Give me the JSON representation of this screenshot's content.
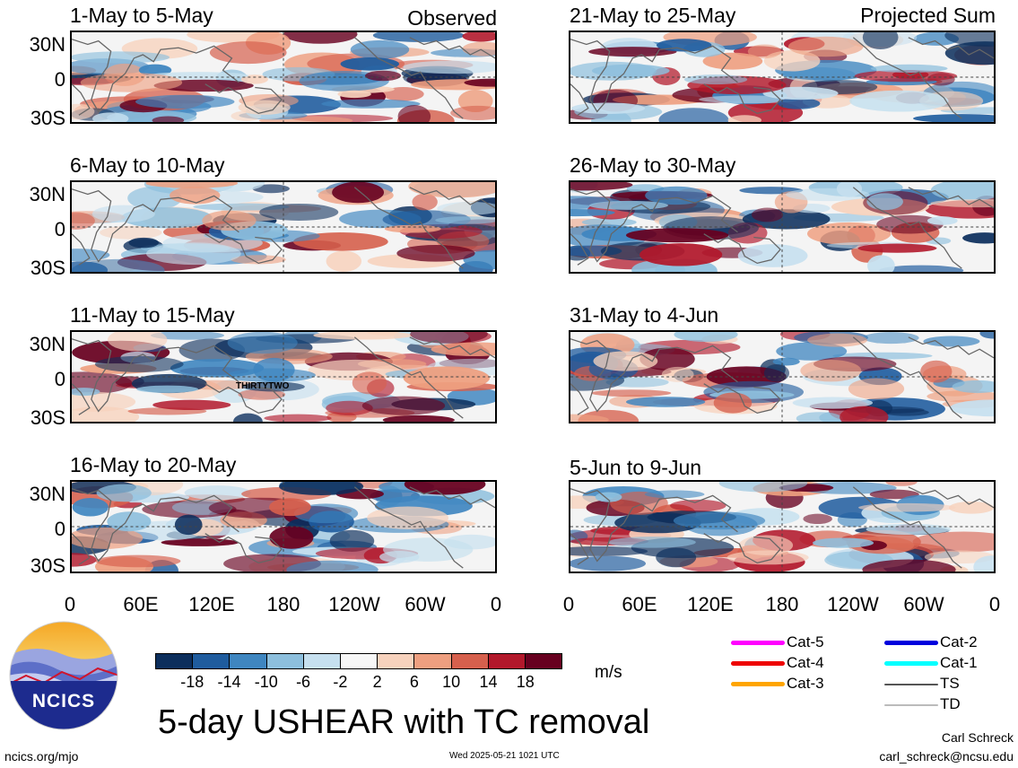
{
  "header": {
    "left_corner": "Observed",
    "right_corner": "Projected Sum"
  },
  "panels": [
    {
      "title": "1-May to 5-May"
    },
    {
      "title": "6-May to 10-May"
    },
    {
      "title": "11-May to 15-May",
      "annotation": "THIRTYTWO"
    },
    {
      "title": "16-May to 20-May"
    },
    {
      "title": "21-May to 25-May"
    },
    {
      "title": "26-May to 30-May"
    },
    {
      "title": "31-May to 4-Jun"
    },
    {
      "title": "5-Jun to 9-Jun"
    }
  ],
  "y_labels": [
    "30N",
    "0",
    "30S"
  ],
  "x_labels": [
    "0",
    "60E",
    "120E",
    "180",
    "120W",
    "60W",
    "0"
  ],
  "colorbar": {
    "colors": [
      "#0c2e5c",
      "#1f5c9e",
      "#3f86c0",
      "#8dbfdd",
      "#c6e0ef",
      "#f7f7f7",
      "#f7d2bd",
      "#ee9f80",
      "#d6604d",
      "#b2182b",
      "#67001f"
    ],
    "ticks": [
      "-18",
      "-14",
      "-10",
      "-6",
      "-2",
      "2",
      "6",
      "10",
      "14",
      "18"
    ],
    "units": "m/s"
  },
  "legend": [
    {
      "label": "Cat-5",
      "color": "#ff00ff"
    },
    {
      "label": "Cat-4",
      "color": "#ee0000"
    },
    {
      "label": "Cat-3",
      "color": "#ffa500"
    },
    {
      "label": "Cat-2",
      "color": "#0000dd"
    },
    {
      "label": "Cat-1",
      "color": "#00ffff"
    },
    {
      "label": "TS",
      "color": "#555555"
    },
    {
      "label": "TD",
      "color": "#bbbbbb"
    }
  ],
  "logo": {
    "text": "NCICS"
  },
  "main_title": "5-day USHEAR with TC removal",
  "footer": {
    "left": "ncics.org/mjo",
    "center": "Wed 2025-05-21 1021 UTC",
    "author": "Carl Schreck",
    "email": "carl_schreck@ncsu.edu"
  }
}
